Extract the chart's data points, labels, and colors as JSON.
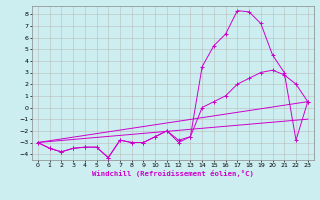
{
  "xlabel": "Windchill (Refroidissement éolien,°C)",
  "bg_color": "#cceef0",
  "line_color": "#cc00cc",
  "grid_color": "#bbbbbb",
  "xlim": [
    -0.5,
    23.5
  ],
  "ylim": [
    -4.5,
    8.7
  ],
  "xticks": [
    0,
    1,
    2,
    3,
    4,
    5,
    6,
    7,
    8,
    9,
    10,
    11,
    12,
    13,
    14,
    15,
    16,
    17,
    18,
    19,
    20,
    21,
    22,
    23
  ],
  "yticks": [
    -4,
    -3,
    -2,
    -1,
    0,
    1,
    2,
    3,
    4,
    5,
    6,
    7,
    8
  ],
  "line1_x": [
    0,
    1,
    2,
    3,
    4,
    5,
    6,
    7,
    8,
    9,
    10,
    11,
    12,
    13,
    14,
    15,
    16,
    17,
    18,
    19,
    20,
    21,
    22,
    23
  ],
  "line1_y": [
    -3,
    -3.5,
    -3.8,
    -3.5,
    -3.4,
    -3.4,
    -4.3,
    -2.8,
    -3.0,
    -3.0,
    -2.5,
    -2.0,
    -3.0,
    -2.5,
    3.5,
    5.3,
    6.3,
    8.3,
    8.2,
    7.2,
    4.5,
    3.0,
    -2.8,
    0.5
  ],
  "line2_x": [
    0,
    1,
    2,
    3,
    4,
    5,
    6,
    7,
    8,
    9,
    10,
    11,
    12,
    13,
    14,
    15,
    16,
    17,
    18,
    19,
    20,
    21,
    22,
    23
  ],
  "line2_y": [
    -3,
    -3.5,
    -3.8,
    -3.5,
    -3.4,
    -3.4,
    -4.3,
    -2.8,
    -3.0,
    -3.0,
    -2.5,
    -2.0,
    -2.8,
    -2.5,
    0.0,
    0.5,
    1.0,
    2.0,
    2.5,
    3.0,
    3.2,
    2.8,
    2.0,
    0.5
  ],
  "line3_x": [
    0,
    23
  ],
  "line3_y": [
    -3.0,
    0.5
  ],
  "line4_x": [
    0,
    23
  ],
  "line4_y": [
    -3.0,
    -1.0
  ]
}
